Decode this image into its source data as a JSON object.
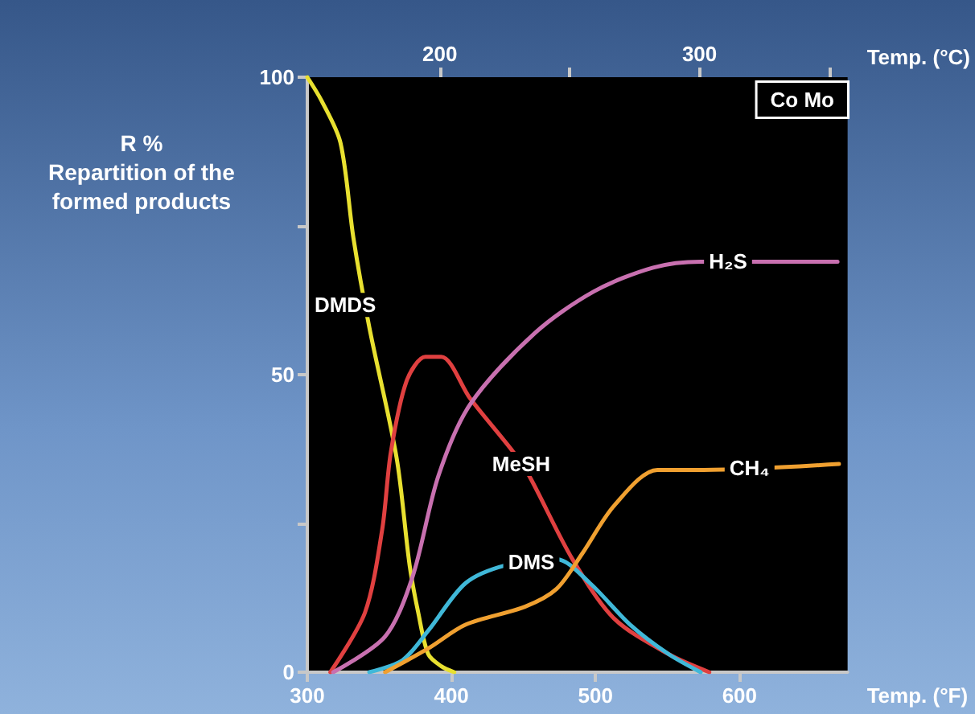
{
  "chart_data": {
    "type": "line",
    "xlabel": "Temp. (°F)",
    "x2label": "Temp. (°C)",
    "ylabel": "R %\nRepartition of the\nformed products",
    "annotations": [
      "Co Mo"
    ],
    "xlim": [
      300,
      675
    ],
    "xticks": [
      300,
      400,
      500,
      600
    ],
    "x2lim": [
      149,
      357
    ],
    "x2ticks": [
      200,
      {
        "value": 250,
        "label": null
      },
      300,
      {
        "value": 350,
        "label": null
      }
    ],
    "ylim": [
      0,
      100
    ],
    "yticks": [
      0,
      {
        "value": 25,
        "label": null
      },
      50,
      {
        "value": 75,
        "label": null
      },
      100
    ],
    "grid": false,
    "legend": false,
    "marker": "none",
    "line_style": "solid",
    "series": [
      {
        "name": "DMDS",
        "color": "#e8e030",
        "x": [
          300,
          310,
          323,
          332,
          343,
          362,
          371,
          377,
          384,
          393,
          402
        ],
        "values": [
          100,
          96,
          89,
          73,
          58,
          36,
          18,
          10,
          3,
          1,
          0
        ]
      },
      {
        "name": "MeSH",
        "color": "#e04040",
        "x": [
          316,
          340,
          352,
          358,
          369,
          382,
          393,
          413,
          443,
          454,
          484,
          513,
          551,
          579
        ],
        "values": [
          0,
          10,
          24,
          37,
          49,
          53,
          53,
          46,
          37,
          33,
          19,
          9,
          3,
          0
        ]
      },
      {
        "name": "H₂S",
        "color": "#c870b0",
        "x": [
          318,
          354,
          373,
          391,
          413,
          458,
          499,
          540,
          573,
          668
        ],
        "values": [
          0,
          6,
          16,
          33,
          45,
          57,
          64,
          68,
          69,
          69
        ]
      },
      {
        "name": "DMS",
        "color": "#40b8d8",
        "x": [
          343,
          366,
          384,
          410,
          438,
          473,
          496,
          524,
          551,
          573
        ],
        "values": [
          0,
          2,
          7,
          15,
          18,
          19,
          15,
          8,
          3,
          0
        ]
      },
      {
        "name": "CH₄",
        "color": "#f0a030",
        "x": [
          354,
          384,
          410,
          451,
          473,
          491,
          513,
          543,
          575,
          669
        ],
        "values": [
          0,
          4,
          8,
          11,
          14,
          20,
          28,
          34,
          34,
          35
        ]
      }
    ]
  }
}
